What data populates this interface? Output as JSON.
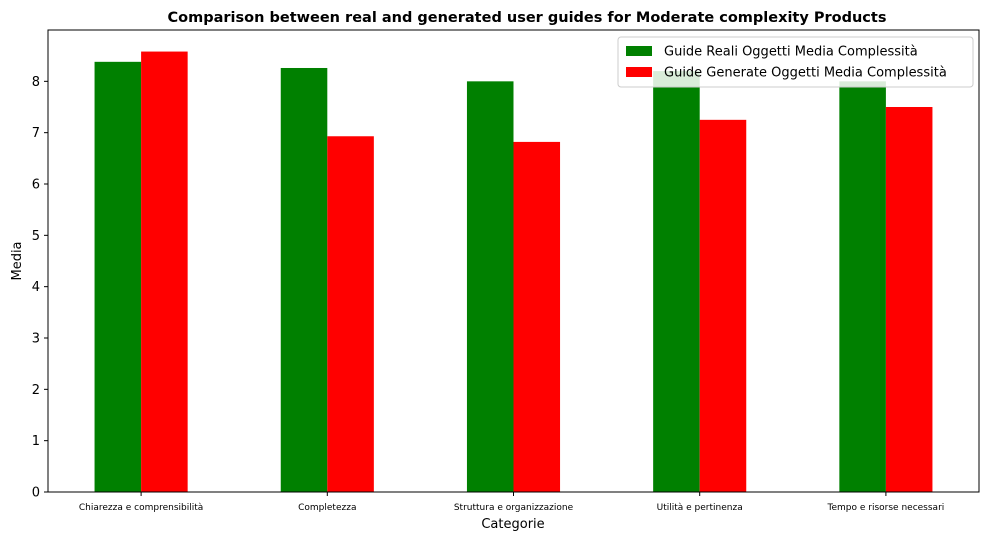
{
  "chart_data": {
    "type": "bar",
    "title": "Comparison between real and generated user guides for Moderate complexity Products",
    "xlabel": "Categorie",
    "ylabel": "Media",
    "categories": [
      "Chiarezza e comprensibilità",
      "Completezza",
      "Struttura e organizzazione",
      "Utilità e pertinenza",
      "Tempo e risorse necessari"
    ],
    "series": [
      {
        "name": "Guide Reali Oggetti Media Complessità",
        "color": "#008000",
        "values": [
          8.38,
          8.26,
          8.0,
          8.2,
          8.0
        ]
      },
      {
        "name": "Guide Generate Oggetti Media Complessità",
        "color": "#ff0000",
        "values": [
          8.58,
          6.93,
          6.82,
          7.25,
          7.5
        ]
      }
    ],
    "ylim": [
      0,
      9
    ],
    "yticks": [
      0,
      1,
      2,
      3,
      4,
      5,
      6,
      7,
      8
    ],
    "grid": false,
    "legend_position": "top-right"
  }
}
